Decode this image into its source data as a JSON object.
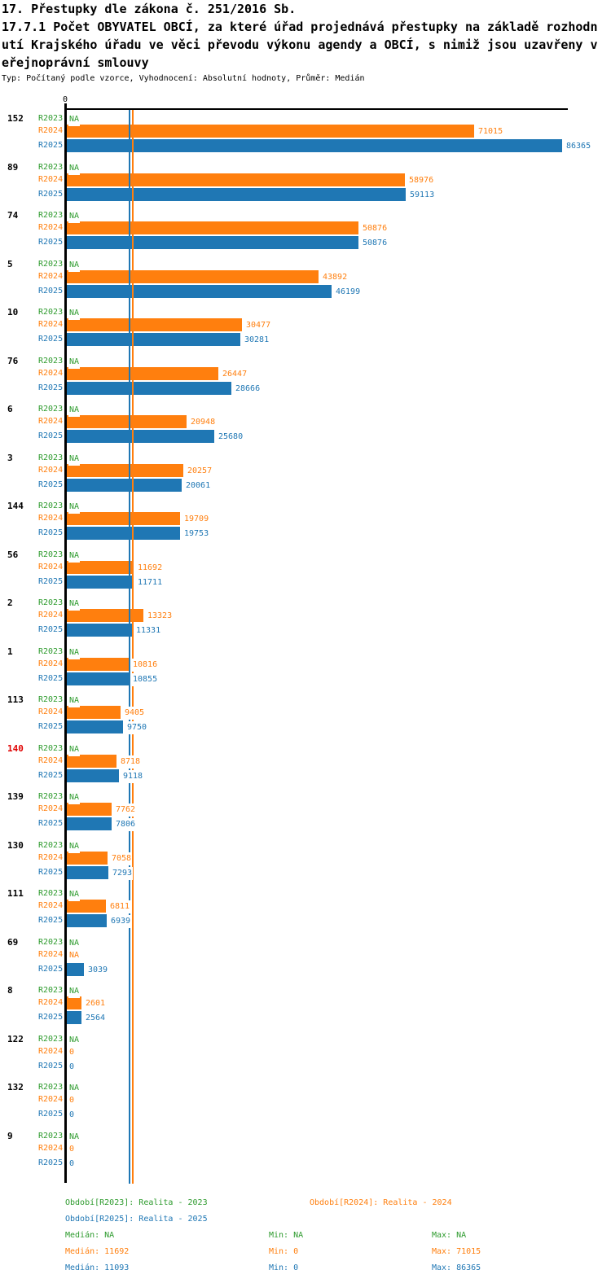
{
  "title": {
    "line1": "17. Přestupky dle zákona č. 251/2016 Sb.",
    "line2": "17.7.1 Počet OBYVATEL OBCÍ, za které úřad projednává přestupky na základě rozhodn",
    "line3": "utí Krajského úřadu ve věci převodu výkonu agendy a OBCÍ, s nimiž jsou uzavřeny v",
    "line4": "eřejnoprávní smlouvy",
    "subtitle": "Typ: Počítaný podle vzorce, Vyhodnocení: Absolutní hodnoty, Průměr: Medián"
  },
  "colors": {
    "green": "#2E9B2E",
    "orange": "#FF7F0E",
    "blue": "#1F77B4",
    "red": "#E00000",
    "black": "#000000"
  },
  "chart_data": {
    "type": "bar",
    "orientation": "horizontal",
    "zero_label": "0",
    "na_text": "NA",
    "xlim": [
      0,
      86365
    ],
    "grid": false,
    "series": [
      {
        "name": "R2023",
        "color_key": "green"
      },
      {
        "name": "R2024",
        "color_key": "orange"
      },
      {
        "name": "R2025",
        "color_key": "blue"
      }
    ],
    "medians": {
      "R2024": 11692,
      "R2025": 11093
    },
    "groups": [
      {
        "label": "152",
        "values": [
          null,
          71015,
          86365
        ]
      },
      {
        "label": "89",
        "values": [
          null,
          58976,
          59113
        ]
      },
      {
        "label": "74",
        "values": [
          null,
          50876,
          50876
        ]
      },
      {
        "label": "5",
        "values": [
          null,
          43892,
          46199
        ]
      },
      {
        "label": "10",
        "values": [
          null,
          30477,
          30281
        ]
      },
      {
        "label": "76",
        "values": [
          null,
          26447,
          28666
        ]
      },
      {
        "label": "6",
        "values": [
          null,
          20948,
          25680
        ]
      },
      {
        "label": "3",
        "values": [
          null,
          20257,
          20061
        ]
      },
      {
        "label": "144",
        "values": [
          null,
          19709,
          19753
        ]
      },
      {
        "label": "56",
        "values": [
          null,
          11692,
          11711
        ]
      },
      {
        "label": "2",
        "values": [
          null,
          13323,
          11331
        ]
      },
      {
        "label": "1",
        "values": [
          null,
          10816,
          10855
        ]
      },
      {
        "label": "113",
        "values": [
          null,
          9405,
          9750
        ]
      },
      {
        "label": "140",
        "highlight": true,
        "values": [
          null,
          8718,
          9118
        ]
      },
      {
        "label": "139",
        "values": [
          null,
          7762,
          7806
        ]
      },
      {
        "label": "130",
        "values": [
          null,
          7058,
          7293
        ]
      },
      {
        "label": "111",
        "values": [
          null,
          6811,
          6939
        ]
      },
      {
        "label": "69",
        "values": [
          null,
          null,
          3039
        ]
      },
      {
        "label": "8",
        "values": [
          null,
          2601,
          2564
        ]
      },
      {
        "label": "122",
        "values": [
          null,
          0,
          0
        ]
      },
      {
        "label": "132",
        "values": [
          null,
          0,
          0
        ]
      },
      {
        "label": "9",
        "values": [
          null,
          0,
          0
        ]
      }
    ]
  },
  "legend": {
    "r2023": "Období[R2023]: Realita - 2023",
    "r2024": "Období[R2024]: Realita - 2024",
    "r2025": "Období[R2025]: Realita - 2025"
  },
  "stats": {
    "r2023": {
      "median": "Medián: NA",
      "min": "Min: NA",
      "max": "Max: NA"
    },
    "r2024": {
      "median": "Medián: 11692",
      "min": "Min: 0",
      "max": "Max: 71015"
    },
    "r2025": {
      "median": "Medián: 11093",
      "min": "Min: 0",
      "max": "Max: 86365"
    }
  }
}
